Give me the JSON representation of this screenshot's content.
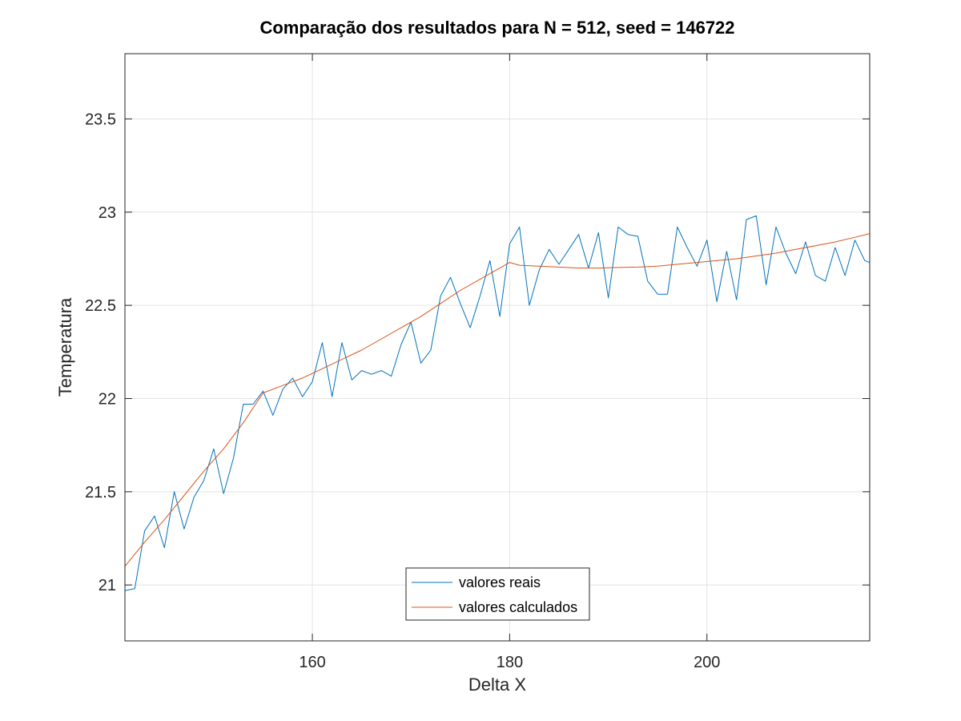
{
  "chart_data": {
    "type": "line",
    "title": "Comparação dos resultados para N = 512, seed = 146722",
    "xlabel": "Delta X",
    "ylabel": "Temperatura",
    "xlim": [
      141,
      216.5
    ],
    "ylim": [
      20.7,
      23.85
    ],
    "xticks": [
      160,
      180,
      200
    ],
    "xtick_labels": [
      "160",
      "180",
      "200"
    ],
    "yticks": [
      21,
      21.5,
      22,
      22.5,
      23,
      23.5
    ],
    "ytick_labels": [
      "21",
      "21.5",
      "22",
      "22.5",
      "23",
      "23.5"
    ],
    "grid": true,
    "legend_position": "bottom-center",
    "series": [
      {
        "name": "valores reais",
        "color": "#0072BD",
        "x": [
          141,
          142,
          143,
          144,
          145,
          146,
          147,
          148,
          149,
          150,
          151,
          152,
          153,
          154,
          155,
          156,
          157,
          158,
          159,
          160,
          161,
          162,
          163,
          164,
          165,
          166,
          167,
          168,
          169,
          170,
          171,
          172,
          173,
          174,
          175,
          176,
          177,
          178,
          179,
          180,
          181,
          182,
          183,
          184,
          185,
          186,
          187,
          188,
          189,
          190,
          191,
          192,
          193,
          194,
          195,
          196,
          197,
          198,
          199,
          200,
          201,
          202,
          203,
          204,
          205,
          206,
          207,
          208,
          209,
          210,
          211,
          212,
          213,
          214,
          215,
          216,
          217
        ],
        "y": [
          20.97,
          20.98,
          21.29,
          21.37,
          21.2,
          21.5,
          21.3,
          21.47,
          21.56,
          21.73,
          21.49,
          21.68,
          21.97,
          21.97,
          22.04,
          21.91,
          22.05,
          22.11,
          22.01,
          22.09,
          22.3,
          22.01,
          22.3,
          22.1,
          22.15,
          22.13,
          22.15,
          22.12,
          22.29,
          22.41,
          22.19,
          22.26,
          22.55,
          22.65,
          22.51,
          22.38,
          22.55,
          22.74,
          22.44,
          22.83,
          22.92,
          22.5,
          22.69,
          22.8,
          22.72,
          22.8,
          22.88,
          22.7,
          22.89,
          22.54,
          22.92,
          22.88,
          22.87,
          22.63,
          22.56,
          22.56,
          22.92,
          22.81,
          22.71,
          22.85,
          22.52,
          22.79,
          22.53,
          22.96,
          22.98,
          22.61,
          22.92,
          22.78,
          22.67,
          22.84,
          22.66,
          22.63,
          22.81,
          22.66,
          22.85,
          22.74,
          22.72
        ]
      },
      {
        "name": "valores calculados",
        "color": "#D95319",
        "x": [
          141,
          143,
          145,
          147,
          149,
          151,
          153,
          155,
          157,
          159,
          161,
          163,
          165,
          167,
          169,
          171,
          173,
          175,
          177,
          179,
          180,
          181,
          183,
          185,
          187,
          189,
          191,
          193,
          195,
          197,
          199,
          201,
          203,
          205,
          207,
          209,
          211,
          213,
          215,
          216.5
        ],
        "y": [
          21.1,
          21.23,
          21.35,
          21.48,
          21.61,
          21.73,
          21.87,
          22.03,
          22.07,
          22.11,
          22.16,
          22.21,
          22.26,
          22.32,
          22.38,
          22.44,
          22.51,
          22.58,
          22.64,
          22.7,
          22.73,
          22.715,
          22.71,
          22.705,
          22.7,
          22.7,
          22.703,
          22.705,
          22.71,
          22.72,
          22.73,
          22.74,
          22.75,
          22.765,
          22.78,
          22.8,
          22.82,
          22.84,
          22.865,
          22.885
        ]
      }
    ]
  }
}
